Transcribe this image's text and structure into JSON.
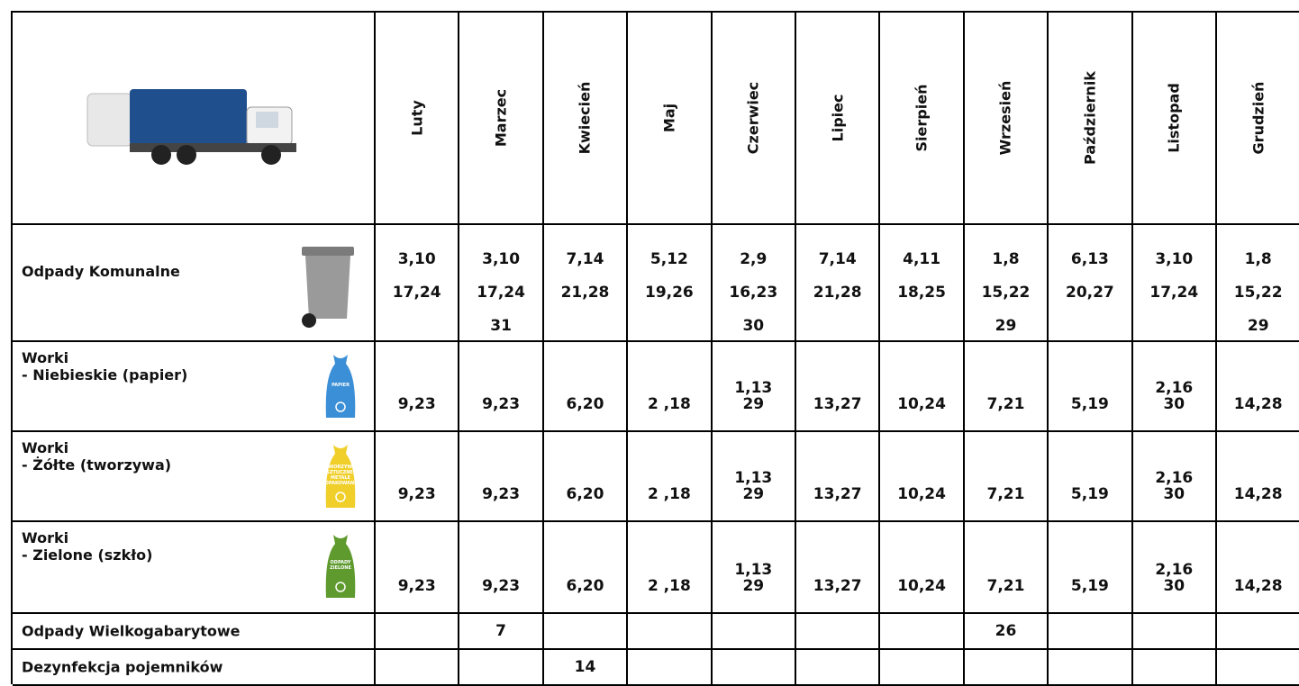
{
  "months": [
    "Luty",
    "Marzec",
    "Kwiecień",
    "Maj",
    "Czerwiec",
    "Lipiec",
    "Sierpień",
    "Wrzesień",
    "Październik",
    "Listopad",
    "Grudzień"
  ],
  "rows": [
    {
      "label": [
        "Odpady Komunalne"
      ],
      "cells": [
        [
          "3,10",
          "17,24"
        ],
        [
          "3,10",
          "17,24",
          "31"
        ],
        [
          "7,14",
          "21,28"
        ],
        [
          "5,12",
          "19,26"
        ],
        [
          "2,9",
          "16,23",
          "30"
        ],
        [
          "7,14",
          "21,28"
        ],
        [
          "4,11",
          "18,25"
        ],
        [
          "1,8",
          "15,22",
          "29"
        ],
        [
          "6,13",
          "20,27"
        ],
        [
          "3,10",
          "17,24"
        ],
        [
          "1,8",
          "15,22",
          "29"
        ]
      ]
    },
    {
      "label": [
        "Worki",
        "- Niebieskie (papier)"
      ],
      "icon_text": [
        "PAPIER"
      ],
      "cells": [
        [
          "9,23"
        ],
        [
          "9,23"
        ],
        [
          "6,20"
        ],
        [
          "2 ,18"
        ],
        [
          "1,13",
          "29"
        ],
        [
          "13,27"
        ],
        [
          "10,24"
        ],
        [
          "7,21"
        ],
        [
          "5,19"
        ],
        [
          "2,16",
          "30"
        ],
        [
          "14,28"
        ]
      ]
    },
    {
      "label": [
        "Worki",
        "- Żółte (tworzywa)"
      ],
      "icon_text": [
        "TWORZYWA",
        "SZTUCZNE,",
        "METALE",
        "I OPAKOWANIA"
      ],
      "cells": [
        [
          "9,23"
        ],
        [
          "9,23"
        ],
        [
          "6,20"
        ],
        [
          "2 ,18"
        ],
        [
          "1,13",
          "29"
        ],
        [
          "13,27"
        ],
        [
          "10,24"
        ],
        [
          "7,21"
        ],
        [
          "5,19"
        ],
        [
          "2,16",
          "30"
        ],
        [
          "14,28"
        ]
      ]
    },
    {
      "label": [
        "Worki",
        "- Zielone (szkło)"
      ],
      "icon_text": [
        "ODPADY",
        "ZIELONE"
      ],
      "cells": [
        [
          "9,23"
        ],
        [
          "9,23"
        ],
        [
          "6,20"
        ],
        [
          "2 ,18"
        ],
        [
          "1,13",
          "29"
        ],
        [
          "13,27"
        ],
        [
          "10,24"
        ],
        [
          "7,21"
        ],
        [
          "5,19"
        ],
        [
          "2,16",
          "30"
        ],
        [
          "14,28"
        ]
      ]
    },
    {
      "label": [
        "Odpady Wielkogabarytowe"
      ],
      "cells": [
        [],
        [
          "7"
        ],
        [],
        [],
        [],
        [],
        [],
        [
          "26"
        ],
        [],
        [],
        []
      ]
    },
    {
      "label": [
        "Dezynfekcja pojemników"
      ],
      "cells": [
        [],
        [],
        [
          "14"
        ],
        [],
        [],
        [],
        [],
        [],
        [],
        [],
        []
      ]
    }
  ]
}
